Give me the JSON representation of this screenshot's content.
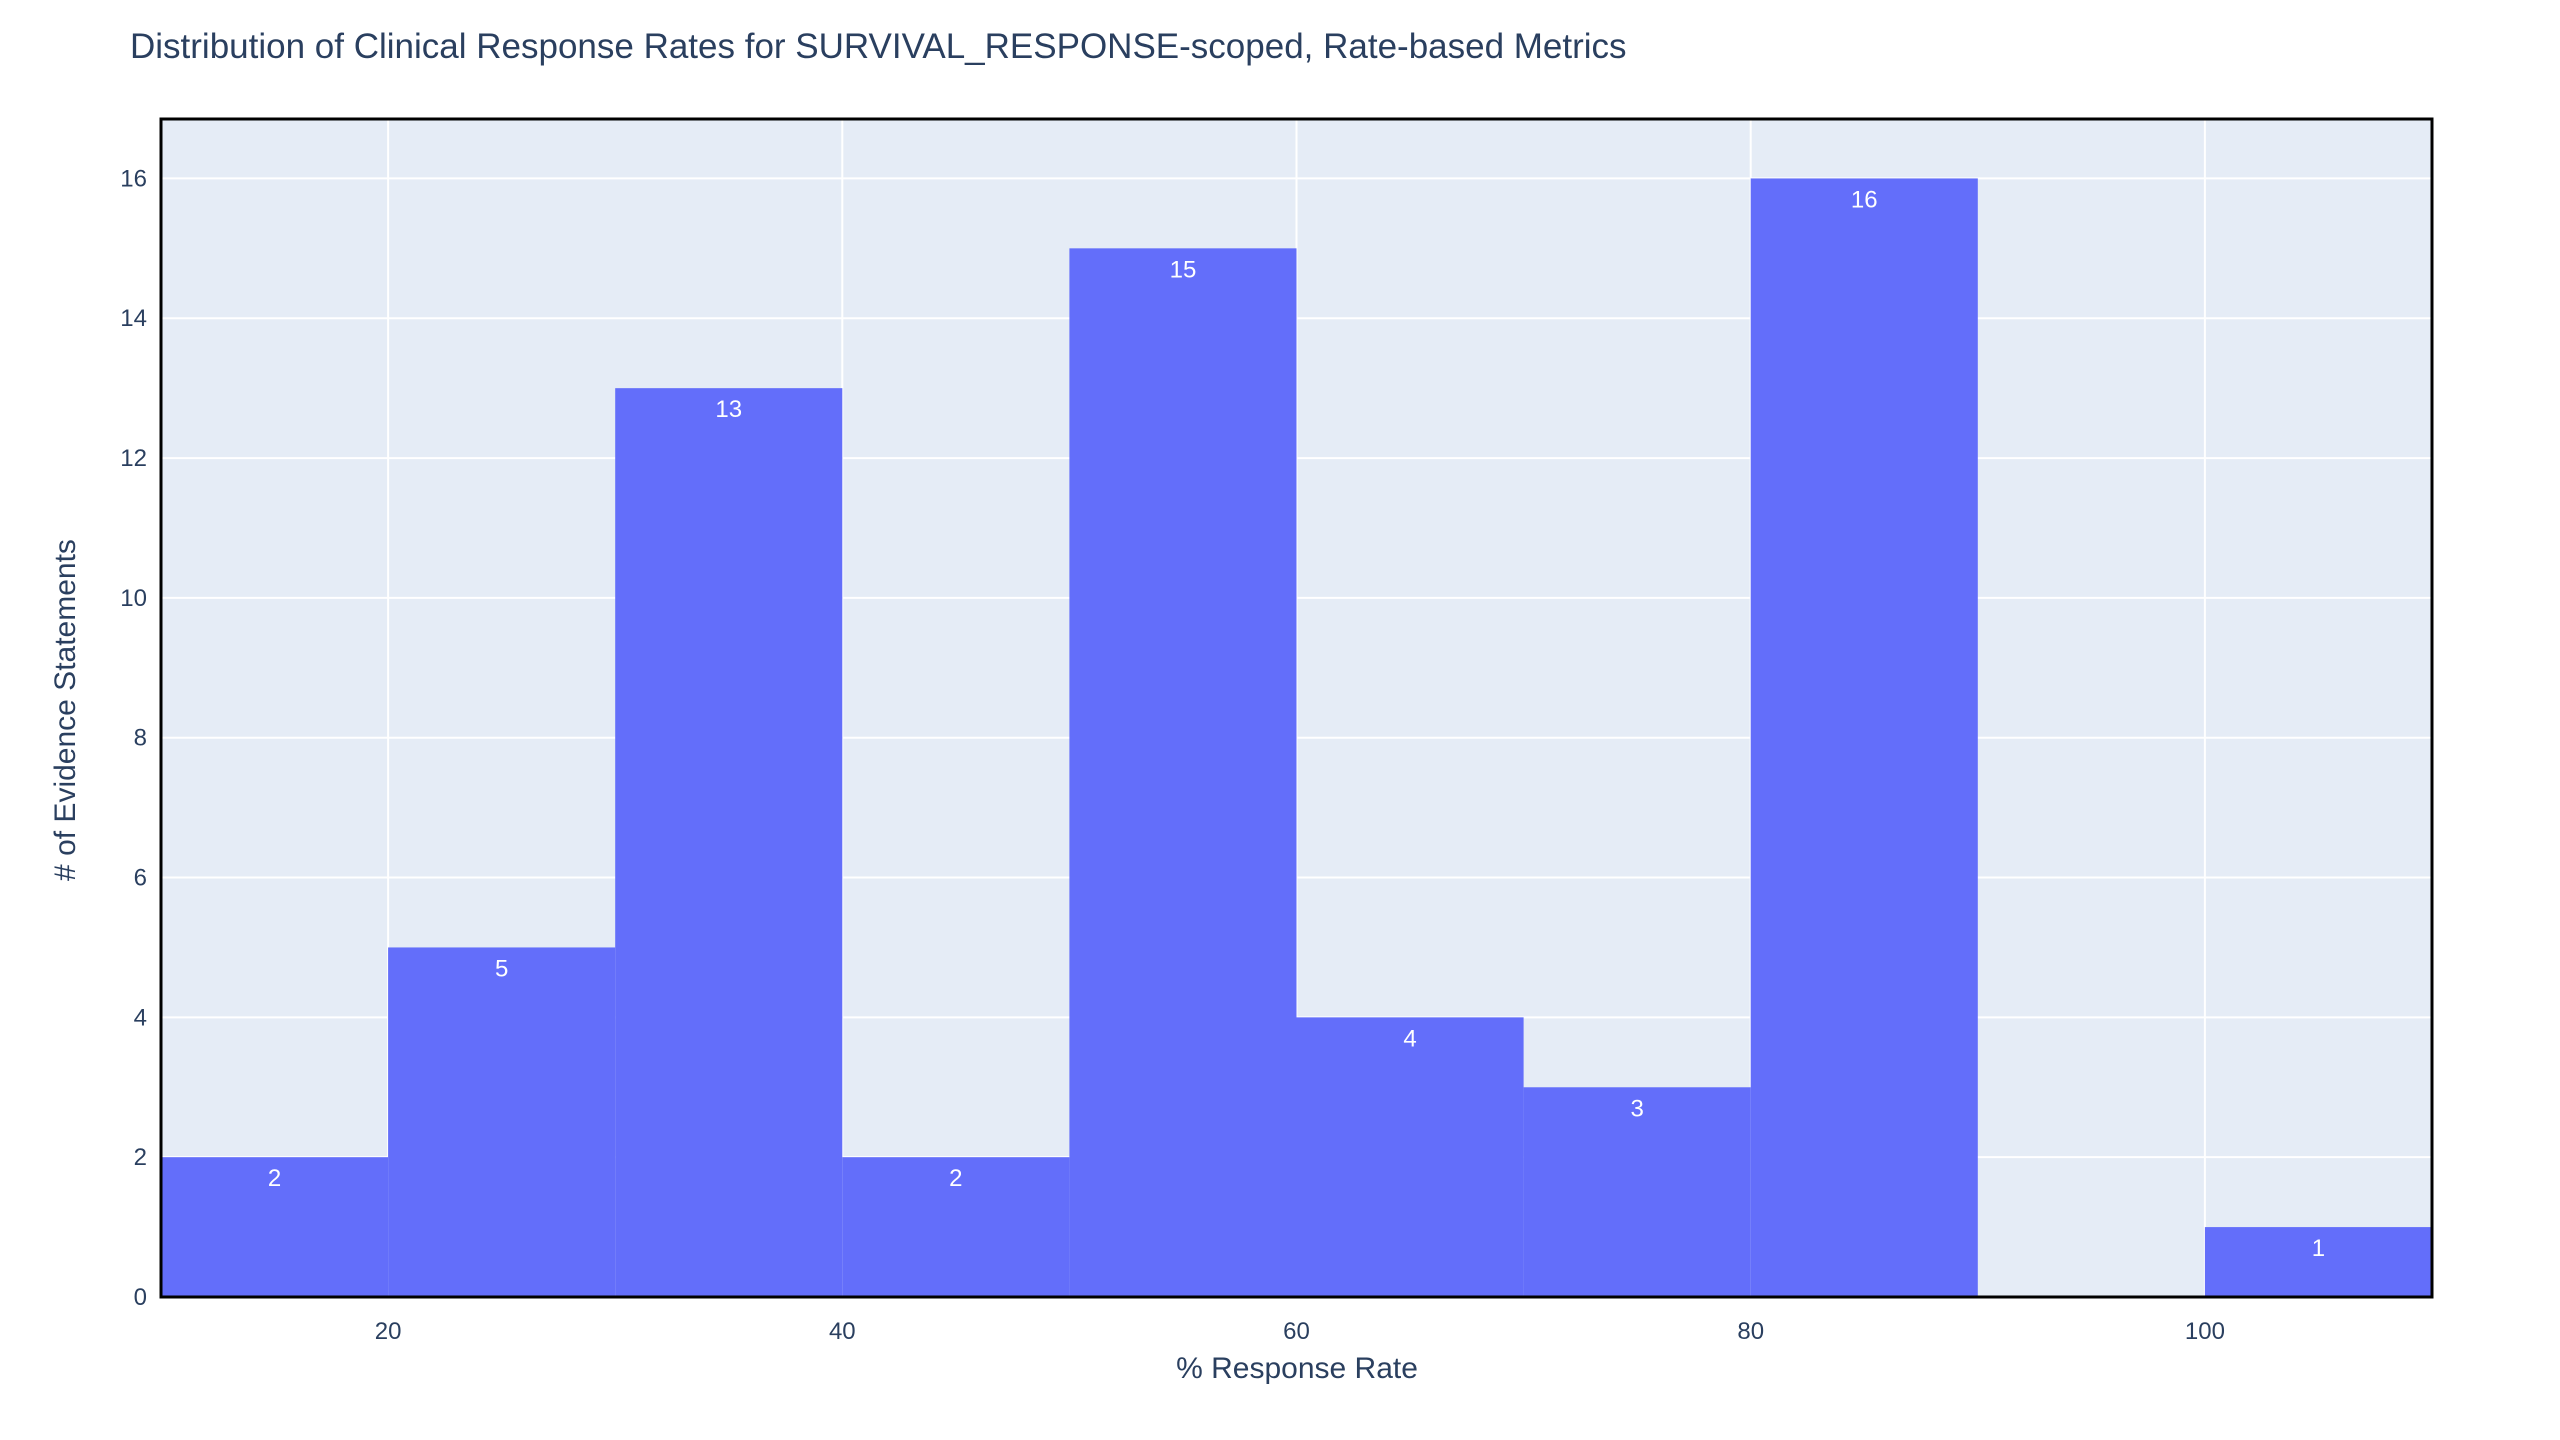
{
  "chart_data": {
    "type": "bar",
    "title": "Distribution of Clinical Response Rates for SURVIVAL_RESPONSE-scoped, Rate-based Metrics",
    "xlabel": "% Response Rate",
    "ylabel": "# of Evidence Statements",
    "bin_edges": [
      10,
      20,
      30,
      40,
      50,
      60,
      70,
      80,
      90,
      100,
      110
    ],
    "values": [
      2,
      5,
      13,
      2,
      15,
      4,
      3,
      16,
      0,
      1
    ],
    "xlim": [
      10,
      110
    ],
    "ylim": [
      0,
      16.85
    ],
    "x_ticks": [
      20,
      40,
      60,
      80,
      100
    ],
    "y_ticks": [
      0,
      2,
      4,
      6,
      8,
      10,
      12,
      14,
      16
    ],
    "grid": true,
    "bar_color": "#636efa",
    "plot_background": "#e5ecf6",
    "frame_color": "#000000"
  }
}
